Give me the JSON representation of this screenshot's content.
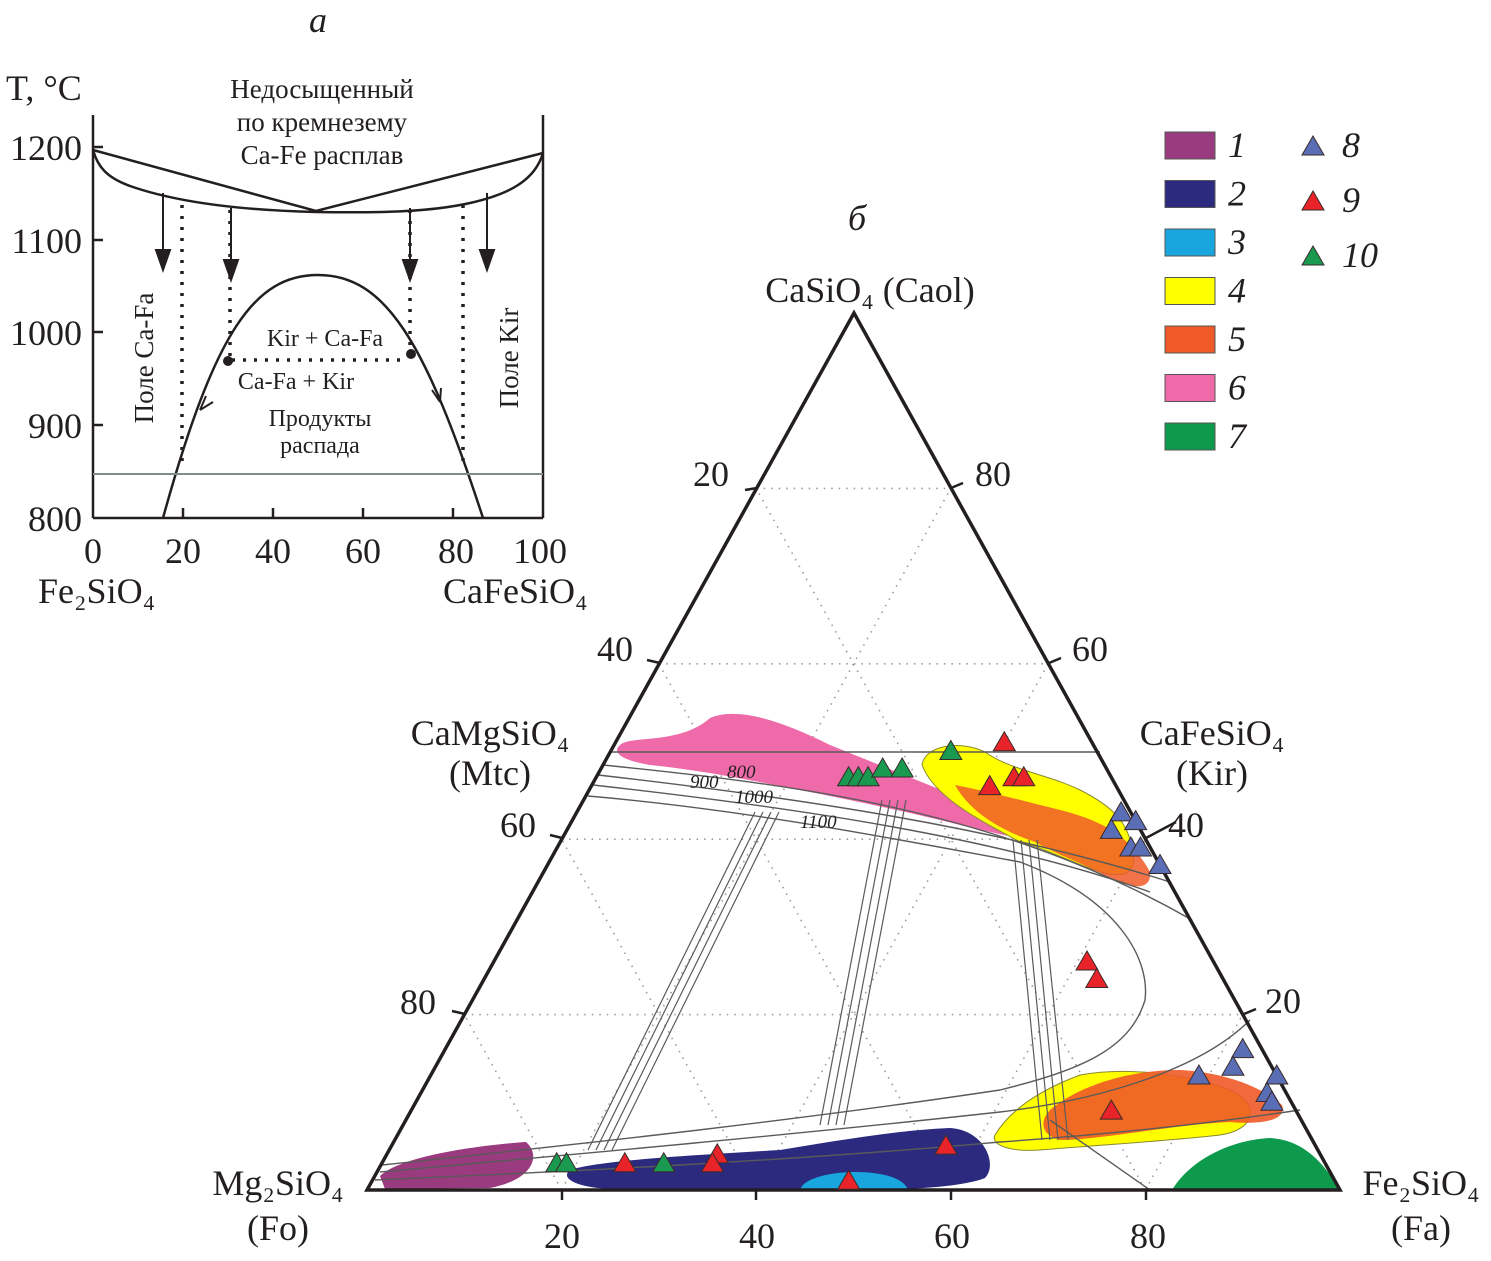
{
  "panel_a": {
    "letter": "а",
    "y_axis_label": "T, °C",
    "y_ticks": [
      "1200",
      "1100",
      "1000",
      "900",
      "800"
    ],
    "x_ticks": [
      "0",
      "20",
      "40",
      "60",
      "80",
      "100"
    ],
    "x_left_label": "Fe₂SiO₄",
    "x_right_label": "CaFeSiO₄",
    "melt_label": [
      "Недосыщенный",
      "по кремнезему",
      "Ca-Fe расплав"
    ],
    "field_ca_fa": "Поле Ca-Fa",
    "field_kir": "Поле Kir",
    "label_kir_cafa": "Kir + Ca-Fa",
    "label_cafa_kir": "Ca-Fa + Kir",
    "decay_products": [
      "Продукты",
      "распада"
    ]
  },
  "panel_b": {
    "letter": "б",
    "apex_top": "CaSiO₄  (Caol)",
    "apex_left": [
      "Mg₂SiO₄",
      "(Fo)"
    ],
    "apex_right": [
      "Fe₂SiO₄",
      "(Fa)"
    ],
    "side_left": [
      "CaMgSiO₄",
      "(Mtc)"
    ],
    "side_right": [
      "CaFeSiO₄",
      "(Kir)"
    ],
    "left_ticks": [
      "20",
      "40",
      "60",
      "80"
    ],
    "right_ticks": [
      "80",
      "60",
      "40",
      "20"
    ],
    "bottom_ticks": [
      "20",
      "40",
      "60",
      "80"
    ],
    "isotherms": [
      "800",
      "900",
      "1000",
      "1100"
    ]
  },
  "legend": {
    "fields": [
      {
        "label": "1",
        "color": "#9a3b7f"
      },
      {
        "label": "2",
        "color": "#2b2a7f"
      },
      {
        "label": "3",
        "color": "#19a6de"
      },
      {
        "label": "4",
        "color": "#ffff00"
      },
      {
        "label": "5",
        "color": "#f05a28"
      },
      {
        "label": "6",
        "color": "#ee6aa8"
      },
      {
        "label": "7",
        "color": "#0d9a4c"
      }
    ],
    "markers": [
      {
        "label": "8",
        "color": "#5a6eb6"
      },
      {
        "label": "9",
        "color": "#e8242a"
      },
      {
        "label": "10",
        "color": "#1a9a50"
      }
    ]
  },
  "chart_data": {
    "type": "scatter",
    "coordinates": "ternary: Fa (Fe₂SiO₄) %, Caol (CaSiO₄) %",
    "series": [
      {
        "name": "8",
        "points": [
          [
            56,
            43
          ],
          [
            58,
            42
          ],
          [
            56,
            41
          ],
          [
            59,
            39
          ],
          [
            60,
            39
          ],
          [
            63,
            37
          ],
          [
            82,
            16
          ],
          [
            82,
            14
          ],
          [
            79,
            13
          ],
          [
            87,
            13
          ],
          [
            87,
            11
          ],
          [
            88,
            10
          ]
        ]
      },
      {
        "name": "9",
        "points": [
          [
            40,
            51
          ],
          [
            41,
            46
          ],
          [
            43,
            47
          ],
          [
            44,
            47
          ],
          [
            61,
            26
          ],
          [
            63,
            24
          ],
          [
            72,
            9
          ],
          [
            57,
            5
          ],
          [
            34,
            4
          ],
          [
            34,
            3
          ],
          [
            25,
            3
          ],
          [
            49,
            1
          ]
        ]
      },
      {
        "name": "10",
        "points": [
          [
            35,
            50
          ],
          [
            26,
            47
          ],
          [
            27,
            47
          ],
          [
            28,
            47
          ],
          [
            29,
            48
          ],
          [
            31,
            48
          ],
          [
            18,
            3
          ],
          [
            19,
            3
          ],
          [
            29,
            3
          ]
        ]
      }
    ]
  }
}
